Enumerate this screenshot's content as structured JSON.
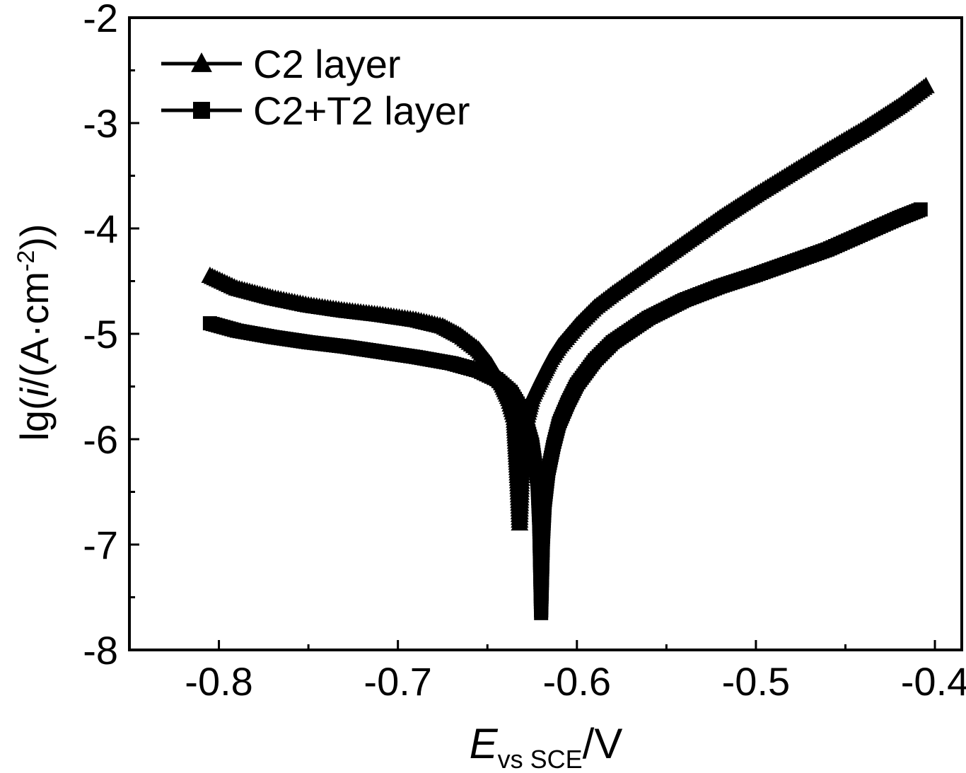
{
  "chart_data": {
    "type": "line",
    "title": "",
    "xlabel": {
      "main": "E",
      "sub": "vs SCE",
      "unit": "/V"
    },
    "ylabel": {
      "prefix": "lg(",
      "italic": "i",
      "mid": "/(A·cm",
      "sup": "-2",
      "suffix": "))"
    },
    "xlim": [
      -0.85,
      -0.385
    ],
    "ylim": [
      -8,
      -2
    ],
    "x_ticks": [
      -0.8,
      -0.7,
      -0.6,
      -0.5,
      -0.4
    ],
    "x_tick_labels": [
      "-0.8",
      "-0.7",
      "-0.6",
      "-0.5",
      "-0.4"
    ],
    "y_ticks": [
      -8,
      -7,
      -6,
      -5,
      -4,
      -3,
      -2
    ],
    "y_tick_labels": [
      "-8",
      "-7",
      "-6",
      "-5",
      "-4",
      "-3",
      "-2"
    ],
    "legend_position": "top-left",
    "grid": false,
    "color": "#000000",
    "series": [
      {
        "name": "C2 layer",
        "marker": "triangle",
        "points": [
          [
            -0.805,
            -4.45
          ],
          [
            -0.79,
            -4.57
          ],
          [
            -0.77,
            -4.66
          ],
          [
            -0.75,
            -4.73
          ],
          [
            -0.73,
            -4.78
          ],
          [
            -0.71,
            -4.82
          ],
          [
            -0.69,
            -4.87
          ],
          [
            -0.675,
            -4.93
          ],
          [
            -0.665,
            -5.02
          ],
          [
            -0.655,
            -5.15
          ],
          [
            -0.648,
            -5.3
          ],
          [
            -0.642,
            -5.47
          ],
          [
            -0.638,
            -5.62
          ],
          [
            -0.635,
            -5.8
          ],
          [
            -0.634,
            -6.1
          ],
          [
            -0.633,
            -6.4
          ],
          [
            -0.632,
            -6.8
          ],
          [
            -0.631,
            -6.35
          ],
          [
            -0.63,
            -6.0
          ],
          [
            -0.628,
            -5.8
          ],
          [
            -0.625,
            -5.6
          ],
          [
            -0.62,
            -5.42
          ],
          [
            -0.615,
            -5.25
          ],
          [
            -0.61,
            -5.12
          ],
          [
            -0.6,
            -4.92
          ],
          [
            -0.59,
            -4.75
          ],
          [
            -0.58,
            -4.62
          ],
          [
            -0.56,
            -4.38
          ],
          [
            -0.54,
            -4.14
          ],
          [
            -0.52,
            -3.9
          ],
          [
            -0.5,
            -3.68
          ],
          [
            -0.48,
            -3.47
          ],
          [
            -0.46,
            -3.26
          ],
          [
            -0.44,
            -3.06
          ],
          [
            -0.42,
            -2.84
          ],
          [
            -0.405,
            -2.65
          ]
        ]
      },
      {
        "name": "C2+T2 layer",
        "marker": "square",
        "points": [
          [
            -0.805,
            -4.9
          ],
          [
            -0.79,
            -4.97
          ],
          [
            -0.77,
            -5.03
          ],
          [
            -0.75,
            -5.08
          ],
          [
            -0.73,
            -5.12
          ],
          [
            -0.71,
            -5.17
          ],
          [
            -0.69,
            -5.22
          ],
          [
            -0.67,
            -5.28
          ],
          [
            -0.655,
            -5.35
          ],
          [
            -0.645,
            -5.43
          ],
          [
            -0.637,
            -5.55
          ],
          [
            -0.63,
            -5.75
          ],
          [
            -0.625,
            -6.05
          ],
          [
            -0.622,
            -6.4
          ],
          [
            -0.621,
            -6.8
          ],
          [
            -0.62,
            -7.65
          ],
          [
            -0.619,
            -6.95
          ],
          [
            -0.618,
            -6.6
          ],
          [
            -0.616,
            -6.3
          ],
          [
            -0.613,
            -6.05
          ],
          [
            -0.61,
            -5.85
          ],
          [
            -0.605,
            -5.65
          ],
          [
            -0.6,
            -5.48
          ],
          [
            -0.59,
            -5.25
          ],
          [
            -0.58,
            -5.08
          ],
          [
            -0.56,
            -4.85
          ],
          [
            -0.54,
            -4.68
          ],
          [
            -0.52,
            -4.55
          ],
          [
            -0.5,
            -4.44
          ],
          [
            -0.48,
            -4.32
          ],
          [
            -0.46,
            -4.2
          ],
          [
            -0.44,
            -4.05
          ],
          [
            -0.42,
            -3.9
          ],
          [
            -0.408,
            -3.82
          ]
        ]
      }
    ]
  }
}
